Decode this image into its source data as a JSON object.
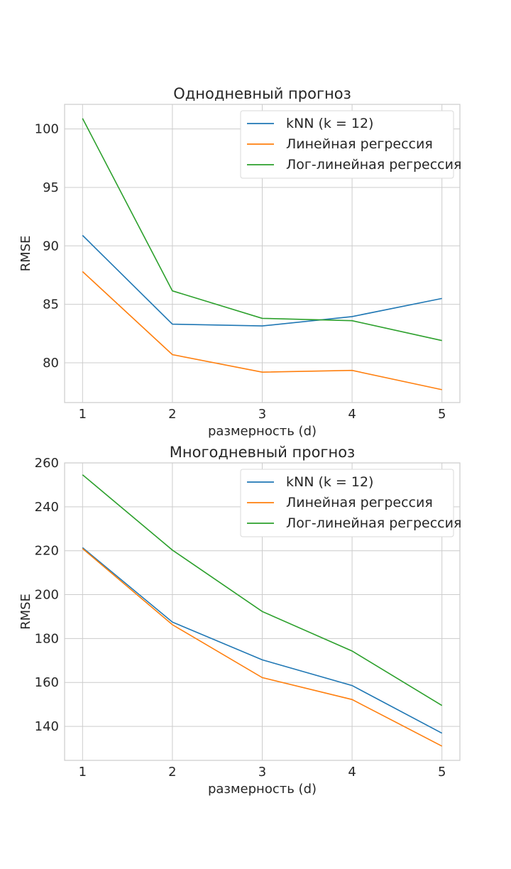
{
  "chart_data": [
    {
      "type": "line",
      "title": "Однодневный прогноз",
      "xlabel": "размерность (d)",
      "ylabel": "RMSE",
      "x": [
        1,
        2,
        3,
        4,
        5
      ],
      "xlim": [
        0.8,
        5.2
      ],
      "ylim": [
        76.6,
        102.1
      ],
      "yticks": [
        80,
        85,
        90,
        95,
        100
      ],
      "grid": true,
      "legend_position": "top-right",
      "series": [
        {
          "name": "kNN (k = 12)",
          "color": "#1f77b4",
          "values": [
            90.9,
            83.3,
            83.15,
            83.95,
            85.5
          ]
        },
        {
          "name": "Линейная регрессия",
          "color": "#ff7f0e",
          "values": [
            87.8,
            80.7,
            79.2,
            79.35,
            77.7
          ]
        },
        {
          "name": "Лог-линейная регрессия",
          "color": "#2ca02c",
          "values": [
            100.9,
            86.15,
            83.8,
            83.6,
            81.9
          ]
        }
      ]
    },
    {
      "type": "line",
      "title": "Многодневный прогноз",
      "xlabel": "размерность (d)",
      "ylabel": "RMSE",
      "x": [
        1,
        2,
        3,
        4,
        5
      ],
      "xlim": [
        0.8,
        5.2
      ],
      "ylim": [
        124.5,
        260
      ],
      "yticks": [
        140,
        160,
        180,
        200,
        220,
        240,
        260
      ],
      "grid": true,
      "legend_position": "top-right",
      "series": [
        {
          "name": "kNN (k = 12)",
          "color": "#1f77b4",
          "values": [
            221.4,
            187.5,
            170.3,
            158.6,
            136.9
          ]
        },
        {
          "name": "Линейная регрессия",
          "color": "#ff7f0e",
          "values": [
            221.0,
            186.3,
            162.2,
            152.2,
            131.0
          ]
        },
        {
          "name": "Лог-линейная регрессия",
          "color": "#2ca02c",
          "values": [
            254.6,
            220.3,
            192.3,
            174.3,
            149.5
          ]
        }
      ]
    }
  ]
}
